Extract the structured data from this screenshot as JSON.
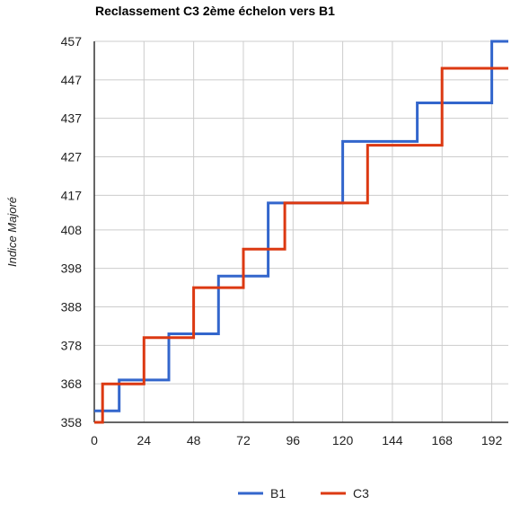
{
  "chart_data": {
    "type": "line",
    "step": true,
    "title": "Reclassement C3 2ème échelon vers B1",
    "xlabel": "",
    "ylabel": "Indice Majoré",
    "xlim": [
      0,
      200
    ],
    "ylim": [
      358,
      457
    ],
    "x_ticks": [
      0,
      24,
      48,
      72,
      96,
      120,
      144,
      168,
      192
    ],
    "y_ticks": [
      358,
      368,
      378,
      388,
      398,
      408,
      417,
      427,
      437,
      447,
      457
    ],
    "grid": true,
    "legend": "bottom",
    "series": [
      {
        "name": "B1",
        "color": "#3366cc",
        "points": [
          [
            0,
            361
          ],
          [
            12,
            361
          ],
          [
            12,
            369
          ],
          [
            36,
            369
          ],
          [
            36,
            381
          ],
          [
            60,
            381
          ],
          [
            60,
            396
          ],
          [
            84,
            396
          ],
          [
            84,
            415
          ],
          [
            120,
            415
          ],
          [
            120,
            431
          ],
          [
            156,
            431
          ],
          [
            156,
            441
          ],
          [
            192,
            441
          ],
          [
            192,
            457
          ],
          [
            200,
            457
          ]
        ]
      },
      {
        "name": "C3",
        "color": "#dc3912",
        "points": [
          [
            0,
            358
          ],
          [
            4,
            358
          ],
          [
            4,
            368
          ],
          [
            24,
            368
          ],
          [
            24,
            380
          ],
          [
            48,
            380
          ],
          [
            48,
            393
          ],
          [
            72,
            393
          ],
          [
            72,
            403
          ],
          [
            92,
            403
          ],
          [
            92,
            415
          ],
          [
            132,
            415
          ],
          [
            132,
            430
          ],
          [
            168,
            430
          ],
          [
            168,
            450
          ],
          [
            200,
            450
          ]
        ]
      }
    ]
  }
}
